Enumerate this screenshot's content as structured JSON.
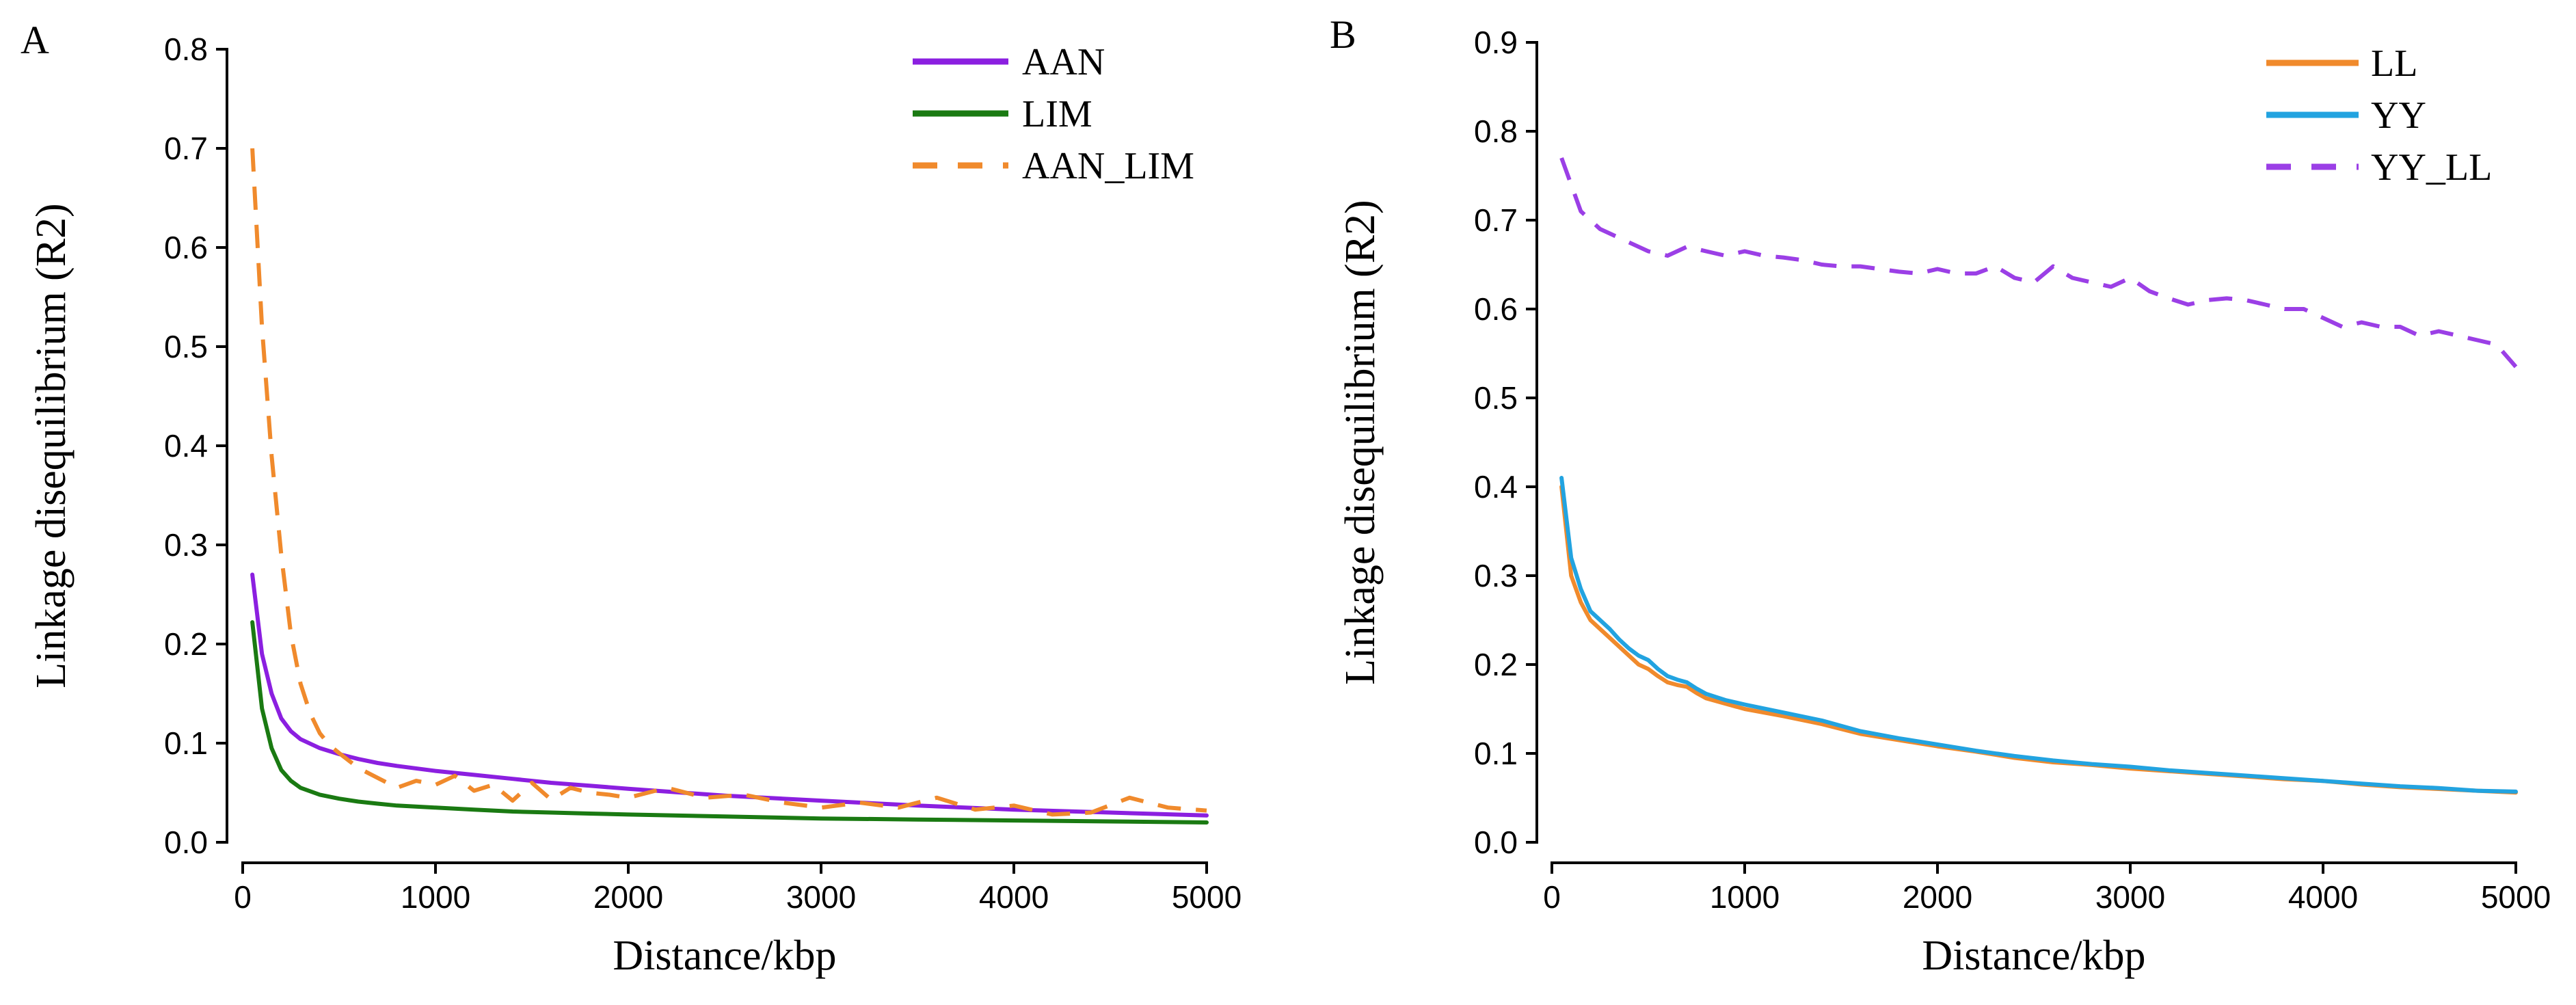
{
  "chart_data": [
    {
      "panel_label": "A",
      "type": "line",
      "xlabel": "Distance/kbp",
      "ylabel": "Linkage disequilibrium (R2)",
      "xlim": [
        0,
        5000
      ],
      "ylim": [
        0,
        0.8
      ],
      "xticks": [
        0,
        1000,
        2000,
        3000,
        4000,
        5000
      ],
      "yticks": [
        0.0,
        0.1,
        0.2,
        0.3,
        0.4,
        0.5,
        0.6,
        0.7,
        0.8
      ],
      "ytick_labels": [
        "0.0",
        "0.1",
        "0.2",
        "0.3",
        "0.4",
        "0.5",
        "0.6",
        "0.7",
        "0.8"
      ],
      "legend_position": "top-right",
      "series": [
        {
          "name": "AAN",
          "color": "#8b1fe0",
          "dash": "solid",
          "x": [
            50,
            100,
            150,
            200,
            250,
            300,
            400,
            500,
            600,
            700,
            800,
            1000,
            1200,
            1400,
            1600,
            1800,
            2000,
            2500,
            3000,
            3500,
            4000,
            4500,
            5000
          ],
          "y": [
            0.27,
            0.19,
            0.15,
            0.125,
            0.112,
            0.104,
            0.095,
            0.089,
            0.084,
            0.08,
            0.077,
            0.072,
            0.068,
            0.064,
            0.06,
            0.057,
            0.054,
            0.047,
            0.042,
            0.037,
            0.033,
            0.03,
            0.027
          ]
        },
        {
          "name": "LIM",
          "color": "#1a7a12",
          "dash": "solid",
          "x": [
            50,
            100,
            150,
            200,
            250,
            300,
            400,
            500,
            600,
            700,
            800,
            1000,
            1200,
            1400,
            1600,
            1800,
            2000,
            2500,
            3000,
            3500,
            4000,
            4500,
            5000
          ],
          "y": [
            0.222,
            0.135,
            0.095,
            0.073,
            0.062,
            0.055,
            0.048,
            0.044,
            0.041,
            0.039,
            0.037,
            0.035,
            0.033,
            0.031,
            0.03,
            0.029,
            0.028,
            0.026,
            0.024,
            0.023,
            0.022,
            0.021,
            0.02
          ]
        },
        {
          "name": "AAN_LIM",
          "color": "#f08a2c",
          "dash": "dashed",
          "x": [
            50,
            100,
            150,
            200,
            250,
            300,
            350,
            400,
            450,
            500,
            600,
            700,
            800,
            900,
            1000,
            1100,
            1200,
            1300,
            1400,
            1500,
            1600,
            1700,
            1800,
            1900,
            2000,
            2200,
            2400,
            2600,
            2800,
            3000,
            3200,
            3400,
            3600,
            3800,
            4000,
            4200,
            4400,
            4600,
            4800,
            5000
          ],
          "y": [
            0.7,
            0.52,
            0.39,
            0.29,
            0.21,
            0.16,
            0.13,
            0.11,
            0.098,
            0.09,
            0.075,
            0.065,
            0.055,
            0.062,
            0.058,
            0.067,
            0.052,
            0.058,
            0.042,
            0.06,
            0.043,
            0.055,
            0.05,
            0.048,
            0.045,
            0.055,
            0.045,
            0.048,
            0.04,
            0.035,
            0.04,
            0.035,
            0.045,
            0.033,
            0.037,
            0.028,
            0.03,
            0.045,
            0.035,
            0.032
          ]
        }
      ]
    },
    {
      "panel_label": "B",
      "type": "line",
      "xlabel": "Distance/kbp",
      "ylabel": "Linkage disequilibrium (R2)",
      "xlim": [
        0,
        5000
      ],
      "ylim": [
        0,
        0.9
      ],
      "xticks": [
        0,
        1000,
        2000,
        3000,
        4000,
        5000
      ],
      "yticks": [
        0.0,
        0.1,
        0.2,
        0.3,
        0.4,
        0.5,
        0.6,
        0.7,
        0.8,
        0.9
      ],
      "ytick_labels": [
        "0.0",
        "0.1",
        "0.2",
        "0.3",
        "0.4",
        "0.5",
        "0.6",
        "0.7",
        "0.8",
        "0.9"
      ],
      "legend_position": "top-right",
      "series": [
        {
          "name": "LL",
          "color": "#f08a2c",
          "dash": "solid",
          "x": [
            50,
            100,
            150,
            200,
            250,
            300,
            350,
            400,
            450,
            500,
            550,
            600,
            650,
            700,
            750,
            800,
            900,
            1000,
            1200,
            1400,
            1600,
            1800,
            2000,
            2200,
            2400,
            2600,
            2800,
            3000,
            3200,
            3400,
            3600,
            3800,
            4000,
            4200,
            4400,
            4600,
            4800,
            5000
          ],
          "y": [
            0.4,
            0.3,
            0.27,
            0.25,
            0.24,
            0.23,
            0.22,
            0.21,
            0.2,
            0.195,
            0.187,
            0.18,
            0.177,
            0.175,
            0.168,
            0.162,
            0.156,
            0.15,
            0.142,
            0.133,
            0.122,
            0.115,
            0.108,
            0.102,
            0.095,
            0.09,
            0.087,
            0.083,
            0.08,
            0.077,
            0.074,
            0.071,
            0.069,
            0.065,
            0.062,
            0.06,
            0.058,
            0.056
          ]
        },
        {
          "name": "YY",
          "color": "#22a3e0",
          "dash": "solid",
          "x": [
            50,
            100,
            150,
            200,
            250,
            300,
            350,
            400,
            450,
            500,
            550,
            600,
            650,
            700,
            750,
            800,
            900,
            1000,
            1200,
            1400,
            1600,
            1800,
            2000,
            2200,
            2400,
            2600,
            2800,
            3000,
            3200,
            3400,
            3600,
            3800,
            4000,
            4200,
            4400,
            4600,
            4800,
            5000
          ],
          "y": [
            0.41,
            0.32,
            0.285,
            0.26,
            0.25,
            0.24,
            0.228,
            0.218,
            0.21,
            0.205,
            0.195,
            0.187,
            0.183,
            0.18,
            0.173,
            0.167,
            0.16,
            0.155,
            0.146,
            0.137,
            0.125,
            0.117,
            0.11,
            0.103,
            0.097,
            0.092,
            0.088,
            0.085,
            0.081,
            0.078,
            0.075,
            0.072,
            0.069,
            0.066,
            0.063,
            0.061,
            0.058,
            0.057
          ]
        },
        {
          "name": "YY_LL",
          "color": "#9b3fe6",
          "dash": "dashed",
          "x": [
            50,
            100,
            150,
            200,
            250,
            300,
            400,
            500,
            600,
            700,
            800,
            900,
            1000,
            1100,
            1200,
            1300,
            1400,
            1500,
            1600,
            1700,
            1800,
            1900,
            2000,
            2100,
            2200,
            2300,
            2400,
            2500,
            2600,
            2700,
            2800,
            2900,
            3000,
            3100,
            3200,
            3300,
            3400,
            3500,
            3600,
            3700,
            3800,
            3900,
            4000,
            4100,
            4200,
            4300,
            4400,
            4500,
            4600,
            4700,
            4800,
            4900,
            5000
          ],
          "y": [
            0.77,
            0.74,
            0.71,
            0.7,
            0.69,
            0.685,
            0.675,
            0.665,
            0.66,
            0.67,
            0.665,
            0.66,
            0.665,
            0.66,
            0.658,
            0.655,
            0.65,
            0.648,
            0.648,
            0.645,
            0.642,
            0.64,
            0.645,
            0.64,
            0.64,
            0.648,
            0.635,
            0.63,
            0.648,
            0.635,
            0.63,
            0.625,
            0.635,
            0.62,
            0.612,
            0.605,
            0.61,
            0.612,
            0.61,
            0.605,
            0.6,
            0.6,
            0.59,
            0.58,
            0.585,
            0.58,
            0.58,
            0.57,
            0.575,
            0.57,
            0.565,
            0.56,
            0.535
          ]
        }
      ]
    }
  ]
}
